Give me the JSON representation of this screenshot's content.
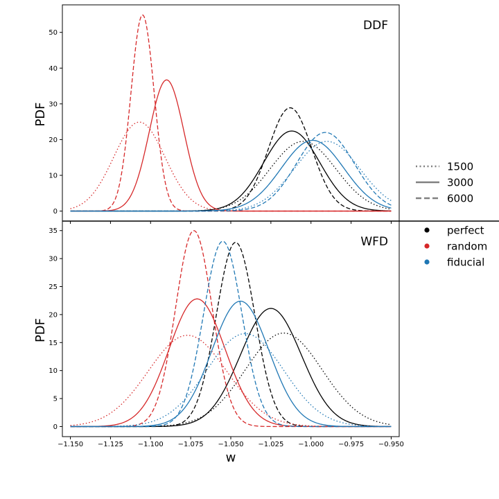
{
  "chart_data": {
    "type": "line",
    "xlabel": "w",
    "xlim": [
      -1.155,
      -0.945
    ],
    "xticks": [
      "−1.150",
      "−1.125",
      "−1.100",
      "−1.075",
      "−1.050",
      "−1.025",
      "−1.000",
      "−0.975",
      "−0.950"
    ],
    "xtick_values": [
      -1.15,
      -1.125,
      -1.1,
      -1.075,
      -1.05,
      -1.025,
      -1.0,
      -0.975,
      -0.95
    ],
    "colors": {
      "perfect": "#000000",
      "random": "#d62728",
      "fiducial": "#1f77b4"
    },
    "legend_styles": [
      {
        "label": "1500",
        "dash": "dotted"
      },
      {
        "label": "3000",
        "dash": "solid"
      },
      {
        "label": "6000",
        "dash": "dashed"
      }
    ],
    "legend_models": [
      {
        "label": "perfect",
        "color": "#000000"
      },
      {
        "label": "random",
        "color": "#d62728"
      },
      {
        "label": "fiducial",
        "color": "#1f77b4"
      }
    ],
    "panels": [
      {
        "label": "DDF",
        "ylabel": "PDF",
        "ylim": [
          -2.8,
          57.7
        ],
        "yticks": [
          0,
          10,
          20,
          30,
          40,
          50
        ],
        "curves": [
          {
            "model": "perfect",
            "size": "1500",
            "mu": -1.005,
            "sigma": 0.0205,
            "peak": 19.5
          },
          {
            "model": "perfect",
            "size": "3000",
            "mu": -1.012,
            "sigma": 0.0175,
            "peak": 22.4
          },
          {
            "model": "perfect",
            "size": "6000",
            "mu": -1.013,
            "sigma": 0.0135,
            "peak": 28.9
          },
          {
            "model": "random",
            "size": "1500",
            "mu": -1.107,
            "sigma": 0.016,
            "peak": 24.9
          },
          {
            "model": "random",
            "size": "3000",
            "mu": -1.09,
            "sigma": 0.0108,
            "peak": 36.7
          },
          {
            "model": "random",
            "size": "6000",
            "mu": -1.105,
            "sigma": 0.0072,
            "peak": 54.9
          },
          {
            "model": "fiducial",
            "size": "1500",
            "mu": -0.99,
            "sigma": 0.0205,
            "peak": 19.5
          },
          {
            "model": "fiducial",
            "size": "3000",
            "mu": -0.999,
            "sigma": 0.0195,
            "peak": 19.8
          },
          {
            "model": "fiducial",
            "size": "6000",
            "mu": -0.991,
            "sigma": 0.018,
            "peak": 22.0
          }
        ]
      },
      {
        "label": "WFD",
        "ylabel": "PDF",
        "ylim": [
          -1.8,
          36.7
        ],
        "yticks": [
          0,
          5,
          10,
          15,
          20,
          25,
          30,
          35
        ],
        "curves": [
          {
            "model": "perfect",
            "size": "1500",
            "mu": -1.017,
            "sigma": 0.024,
            "peak": 16.7
          },
          {
            "model": "perfect",
            "size": "3000",
            "mu": -1.025,
            "sigma": 0.019,
            "peak": 21.1
          },
          {
            "model": "perfect",
            "size": "6000",
            "mu": -1.047,
            "sigma": 0.012,
            "peak": 32.9
          },
          {
            "model": "random",
            "size": "1500",
            "mu": -1.077,
            "sigma": 0.0245,
            "peak": 16.3
          },
          {
            "model": "random",
            "size": "3000",
            "mu": -1.071,
            "sigma": 0.0175,
            "peak": 22.8
          },
          {
            "model": "random",
            "size": "6000",
            "mu": -1.073,
            "sigma": 0.0114,
            "peak": 35.0
          },
          {
            "model": "fiducial",
            "size": "1500",
            "mu": -1.041,
            "sigma": 0.024,
            "peak": 16.6
          },
          {
            "model": "fiducial",
            "size": "3000",
            "mu": -1.044,
            "sigma": 0.0178,
            "peak": 22.4
          },
          {
            "model": "fiducial",
            "size": "6000",
            "mu": -1.055,
            "sigma": 0.012,
            "peak": 33.1
          }
        ]
      }
    ]
  }
}
